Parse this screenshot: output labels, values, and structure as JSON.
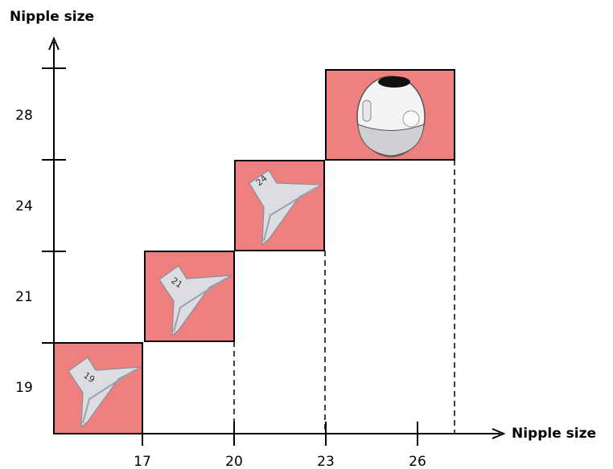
{
  "y_axis": {
    "label": "Nipple size",
    "ticks": [
      "28",
      "24",
      "21",
      "19"
    ]
  },
  "x_axis": {
    "label": "Nipple size",
    "ticks": [
      "17",
      "20",
      "23",
      "26"
    ]
  },
  "flanges": [
    {
      "label": "19"
    },
    {
      "label": "21"
    },
    {
      "label": "24"
    }
  ]
}
